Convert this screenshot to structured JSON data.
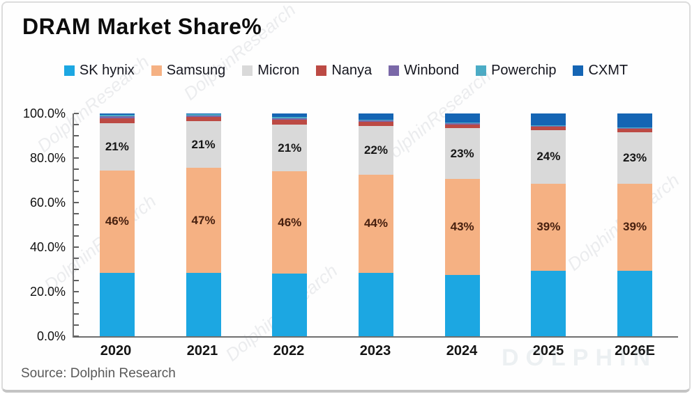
{
  "header": {
    "title": "DRAM Market Share%"
  },
  "footer": {
    "source": "Source: Dolphin Research"
  },
  "watermark": {
    "diagonal": "DolphinResearch",
    "corner": "DOLPHIN"
  },
  "chart_data": {
    "type": "bar",
    "stacked": true,
    "title": "DRAM Market Share%",
    "legend_position": "top",
    "grid": false,
    "categories": [
      "2020",
      "2021",
      "2022",
      "2023",
      "2024",
      "2025",
      "2026E"
    ],
    "y_axis": {
      "tick_labels": [
        "100.0%",
        "80.0%",
        "60.0%",
        "40.0%",
        "20.0%",
        "0.0%"
      ],
      "tick_values": [
        100,
        80,
        60,
        40,
        20,
        0
      ],
      "minor_tick_step": 5,
      "min": 0,
      "max": 100
    },
    "series": [
      {
        "name": "SK hynix",
        "color": "#1CA7E2",
        "values": [
          28.5,
          28.5,
          28.0,
          28.5,
          27.5,
          29.5,
          29.5
        ],
        "labels": null
      },
      {
        "name": "Samsung",
        "color": "#F5B183",
        "values": [
          46,
          47,
          46,
          44,
          43,
          39,
          39
        ],
        "labels": [
          "46%",
          "47%",
          "46%",
          "44%",
          "43%",
          "39%",
          "39%"
        ],
        "label_color": "#47200f"
      },
      {
        "name": "Micron",
        "color": "#D9D9D9",
        "values": [
          21,
          21,
          21,
          22,
          23,
          24,
          23
        ],
        "labels": [
          "21%",
          "21%",
          "21%",
          "22%",
          "23%",
          "24%",
          "23%"
        ],
        "label_color": "#161616"
      },
      {
        "name": "Nanya",
        "color": "#BC4A44",
        "values": [
          2.3,
          1.8,
          2.2,
          1.8,
          1.6,
          1.6,
          1.6
        ],
        "labels": null
      },
      {
        "name": "Winbond",
        "color": "#7A68A8",
        "values": [
          1.0,
          0.8,
          0.7,
          0.6,
          0.5,
          0.4,
          0.4
        ],
        "labels": null
      },
      {
        "name": "Powerchip",
        "color": "#4BACC6",
        "values": [
          0.7,
          0.5,
          0.6,
          0.4,
          0.4,
          0.3,
          0.3
        ],
        "labels": null
      },
      {
        "name": "CXMT",
        "color": "#1565B4",
        "values": [
          0.5,
          0.4,
          1.5,
          2.7,
          4.0,
          5.2,
          6.2
        ],
        "labels": null
      }
    ]
  }
}
